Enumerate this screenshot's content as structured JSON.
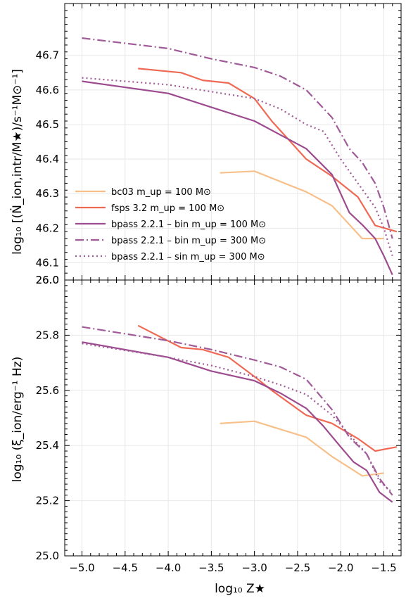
{
  "chart_data": [
    {
      "type": "line",
      "panel": "top",
      "ylabel": "log₁₀ [(Ṅ_ion,intr/M★)/s⁻¹M⊙⁻¹]",
      "ylim": [
        46.05,
        46.85
      ],
      "yticks": [
        "46.1",
        "46.2",
        "46.3",
        "46.4",
        "46.5",
        "46.6",
        "46.7"
      ],
      "grid": true,
      "legend_position": "lower-left",
      "series": [
        {
          "name": "bc03  m_up = 100 M⊙",
          "color": "#f7c08a",
          "style": "solid",
          "x": [
            -3.4,
            -3.0,
            -2.4,
            -2.1,
            -1.75,
            -1.5
          ],
          "y": [
            46.36,
            46.365,
            46.305,
            46.265,
            46.17,
            46.17
          ]
        },
        {
          "name": "fsps 3.2 m_up = 100 M⊙",
          "color": "#ef6a55",
          "style": "solid",
          "x": [
            -4.35,
            -3.85,
            -3.6,
            -3.3,
            -3.0,
            -2.8,
            -2.4,
            -2.1,
            -1.8,
            -1.6,
            -1.35
          ],
          "y": [
            46.662,
            46.65,
            46.628,
            46.62,
            46.575,
            46.51,
            46.4,
            46.35,
            46.29,
            46.208,
            46.19
          ]
        },
        {
          "name": "bpass 2.2.1 – bin m_up = 100 M⊙",
          "color": "#9d4b8f",
          "style": "solid",
          "x": [
            -5.0,
            -4.0,
            -3.5,
            -3.0,
            -2.7,
            -2.4,
            -2.1,
            -1.9,
            -1.75,
            -1.6,
            -1.5,
            -1.4
          ],
          "y": [
            46.625,
            46.59,
            46.55,
            46.51,
            46.47,
            46.43,
            46.355,
            46.245,
            46.21,
            46.17,
            46.12,
            46.065
          ]
        },
        {
          "name": "bpass 2.2.1 – bin m_up = 300 M⊙",
          "color": "#a05a98",
          "style": "dashdot",
          "x": [
            -5.0,
            -4.0,
            -3.5,
            -3.0,
            -2.7,
            -2.4,
            -2.1,
            -1.9,
            -1.75,
            -1.6,
            -1.5,
            -1.4
          ],
          "y": [
            46.75,
            46.72,
            46.69,
            46.665,
            46.64,
            46.6,
            46.52,
            46.43,
            46.39,
            46.33,
            46.26,
            46.17
          ]
        },
        {
          "name": "bpass 2.2.1 – sin m_up = 300 M⊙",
          "color": "#a05a98",
          "style": "dotted",
          "x": [
            -5.0,
            -4.0,
            -3.5,
            -3.0,
            -2.7,
            -2.4,
            -2.2,
            -2.0,
            -1.8,
            -1.6,
            -1.5,
            -1.4
          ],
          "y": [
            46.635,
            46.615,
            46.595,
            46.575,
            46.545,
            46.5,
            46.48,
            46.4,
            46.33,
            46.26,
            46.2,
            46.12
          ]
        }
      ],
      "legend": [
        "bc03  m_up = 100 M⊙",
        "fsps 3.2 m_up = 100 M⊙",
        "bpass 2.2.1 – bin m_up = 100 M⊙",
        "bpass 2.2.1 – bin m_up = 300 M⊙",
        "bpass 2.2.1 – sin m_up = 300 M⊙"
      ]
    },
    {
      "type": "line",
      "panel": "bottom",
      "xlabel": "log₁₀ Z★",
      "ylabel": "log₁₀ (ξ_ion/erg⁻¹ Hz)",
      "xlim": [
        -5.2,
        -1.3
      ],
      "ylim": [
        25.0,
        26.0
      ],
      "xticks": [
        "−5.0",
        "−4.5",
        "−4.0",
        "−3.5",
        "−3.0",
        "−2.5",
        "−2.0",
        "−1.5"
      ],
      "yticks": [
        "25.0",
        "25.2",
        "25.4",
        "25.6",
        "25.8",
        "26.0"
      ],
      "grid": true,
      "series": [
        {
          "name": "bc03",
          "color": "#f7c08a",
          "style": "solid",
          "x": [
            -3.4,
            -3.0,
            -2.4,
            -2.1,
            -1.75,
            -1.5
          ],
          "y": [
            25.48,
            25.488,
            25.43,
            25.36,
            25.29,
            25.3
          ]
        },
        {
          "name": "fsps 3.2",
          "color": "#ef6a55",
          "style": "solid",
          "x": [
            -4.35,
            -3.85,
            -3.6,
            -3.3,
            -3.0,
            -2.8,
            -2.4,
            -2.1,
            -1.8,
            -1.6,
            -1.35
          ],
          "y": [
            25.835,
            25.755,
            25.748,
            25.72,
            25.65,
            25.6,
            25.51,
            25.48,
            25.425,
            25.38,
            25.395
          ]
        },
        {
          "name": "bpass bin 100",
          "color": "#9d4b8f",
          "style": "solid",
          "x": [
            -5.0,
            -4.0,
            -3.5,
            -3.0,
            -2.7,
            -2.4,
            -2.2,
            -2.0,
            -1.85,
            -1.7,
            -1.55,
            -1.4
          ],
          "y": [
            25.775,
            25.72,
            25.67,
            25.635,
            25.59,
            25.535,
            25.47,
            25.395,
            25.34,
            25.31,
            25.23,
            25.195
          ]
        },
        {
          "name": "bpass bin 300",
          "color": "#a05a98",
          "style": "dashdot",
          "x": [
            -5.0,
            -4.0,
            -3.5,
            -3.0,
            -2.7,
            -2.4,
            -2.1,
            -1.9,
            -1.7,
            -1.55,
            -1.4
          ],
          "y": [
            25.83,
            25.78,
            25.748,
            25.71,
            25.685,
            25.64,
            25.53,
            25.43,
            25.37,
            25.28,
            25.22
          ]
        },
        {
          "name": "bpass sin 300",
          "color": "#a05a98",
          "style": "dotted",
          "x": [
            -5.0,
            -4.0,
            -3.5,
            -3.0,
            -2.7,
            -2.4,
            -2.1,
            -1.9,
            -1.7,
            -1.55,
            -1.4
          ],
          "y": [
            25.77,
            25.72,
            25.69,
            25.65,
            25.62,
            25.585,
            25.51,
            25.44,
            25.37,
            25.27,
            25.23
          ]
        }
      ]
    }
  ]
}
